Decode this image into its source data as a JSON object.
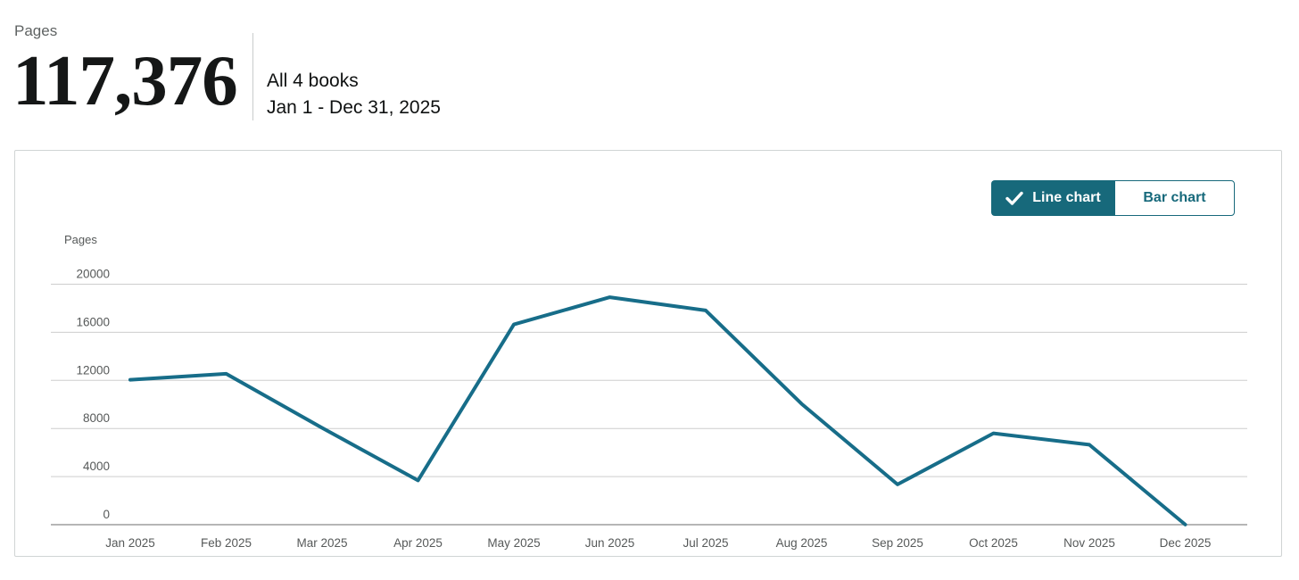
{
  "header": {
    "metric_label": "Pages",
    "metric_value": "117,376",
    "scope": "All 4 books",
    "date_range": "Jan 1 - Dec 31, 2025"
  },
  "panel": {
    "toggle": {
      "options": [
        "Line chart",
        "Bar chart"
      ],
      "selected": "Line chart",
      "check_icon": "checkmark"
    }
  },
  "colors": {
    "accent_teal": "#17697b",
    "line": "#176d89",
    "gridline": "#cdcdcd",
    "zero_line": "#9d9d9d",
    "axis_text": "#565959"
  },
  "chart_data": {
    "type": "line",
    "title": "",
    "ylabel": "Pages",
    "xlabel": "",
    "categories": [
      "Jan 2025",
      "Feb 2025",
      "Mar 2025",
      "Apr 2025",
      "May 2025",
      "Jun 2025",
      "Jul 2025",
      "Aug 2025",
      "Sep 2025",
      "Oct 2025",
      "Nov 2025",
      "Dec 2025"
    ],
    "series": [
      {
        "name": "Pages",
        "values": [
          12050,
          12550,
          8050,
          3680,
          16650,
          18920,
          17820,
          10050,
          3350,
          7600,
          6650,
          6
        ]
      }
    ],
    "yticks": [
      0,
      4000,
      8000,
      12000,
      16000,
      20000
    ],
    "ylim": [
      0,
      20000
    ],
    "grid": true,
    "legend": "none",
    "total": 117376
  }
}
